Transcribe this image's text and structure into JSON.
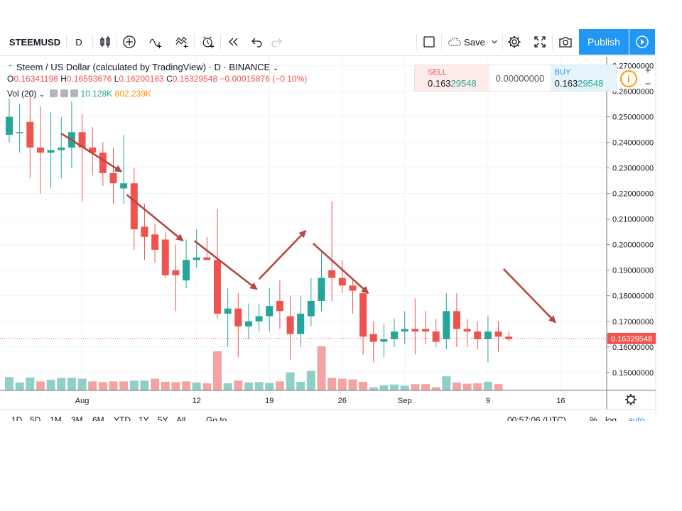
{
  "toolbar": {
    "symbol": "STEEMUSD",
    "interval": "D",
    "icons": [
      "candles-icon",
      "plus-circle-icon",
      "indicator-icon",
      "templates-icon",
      "alert-icon",
      "replay-icon",
      "undo-icon",
      "redo-icon",
      "layout-square-icon",
      "cloud-icon",
      "settings-gear-icon",
      "fullscreen-icon",
      "camera-icon",
      "play-icon"
    ],
    "save_label": "Save",
    "publish_label": "Publish"
  },
  "legend": {
    "title": "Steem / US Dollar (calculated by TradingView) · D · BINANCE",
    "ohlc": {
      "open_label": "O",
      "open": "0.16341198",
      "high_label": "H",
      "high": "0.16593676",
      "low_label": "L",
      "low": "0.16200183",
      "close_label": "C",
      "close": "0.16329548",
      "change": "−0.00015876 (−0.10%)"
    },
    "volume": {
      "label": "Vol (20)",
      "value": "10.128K",
      "ma": "802.239K"
    }
  },
  "trade_panel": {
    "sell_label": "SELL",
    "sell_price_a": "0.163",
    "sell_price_b": "29548",
    "quantity": "0.00000000",
    "buy_label": "BUY",
    "buy_price_a": "0.163",
    "buy_price_b": "29548",
    "info": "i",
    "plus": "+",
    "minus": "−"
  },
  "bottom_bar": {
    "ranges": [
      "1D",
      "5D",
      "1M",
      "3M",
      "6M",
      "YTD",
      "1Y",
      "5Y",
      "All"
    ],
    "goto": "Go to...",
    "time": "00:57:06 (UTC)",
    "percent": "%",
    "log": "log",
    "auto": "auto"
  },
  "colors": {
    "up": "#26a69a",
    "down": "#ef5350",
    "vol_up": "#8fd0c6",
    "vol_down": "#f4a3a3",
    "arrow": "#b4473f",
    "accent": "#2196f3"
  },
  "chart_data": {
    "type": "candlestick",
    "y_ticks": [
      "0.27000000",
      "0.26000000",
      "0.25000000",
      "0.24000000",
      "0.23000000",
      "0.22000000",
      "0.21000000",
      "0.20000000",
      "0.19000000",
      "0.18000000",
      "0.17000000",
      "0.16000000",
      "0.15000000"
    ],
    "y_tick_values": [
      0.27,
      0.26,
      0.25,
      0.24,
      0.23,
      0.22,
      0.21,
      0.2,
      0.19,
      0.18,
      0.17,
      0.16,
      0.15
    ],
    "ylim": [
      0.143,
      0.2735
    ],
    "last_price": 0.16329548,
    "last_price_label": "0.16329548",
    "x_tick_labels": [
      "Aug",
      "12",
      "19",
      "26",
      "Sep",
      "9",
      "16"
    ],
    "x_tick_index": [
      7,
      18,
      25,
      32,
      38,
      46,
      53
    ],
    "candles": [
      {
        "o": 0.243,
        "h": 0.257,
        "l": 0.24,
        "c": 0.25
      },
      {
        "o": 0.244,
        "h": 0.255,
        "l": 0.236,
        "c": 0.244
      },
      {
        "o": 0.248,
        "h": 0.259,
        "l": 0.226,
        "c": 0.238
      },
      {
        "o": 0.238,
        "h": 0.254,
        "l": 0.22,
        "c": 0.236
      },
      {
        "o": 0.236,
        "h": 0.252,
        "l": 0.222,
        "c": 0.237
      },
      {
        "o": 0.237,
        "h": 0.25,
        "l": 0.226,
        "c": 0.238
      },
      {
        "o": 0.238,
        "h": 0.256,
        "l": 0.23,
        "c": 0.244
      },
      {
        "o": 0.244,
        "h": 0.251,
        "l": 0.217,
        "c": 0.238
      },
      {
        "o": 0.238,
        "h": 0.246,
        "l": 0.227,
        "c": 0.236
      },
      {
        "o": 0.236,
        "h": 0.24,
        "l": 0.223,
        "c": 0.228
      },
      {
        "o": 0.228,
        "h": 0.238,
        "l": 0.216,
        "c": 0.224
      },
      {
        "o": 0.222,
        "h": 0.243,
        "l": 0.216,
        "c": 0.224
      },
      {
        "o": 0.224,
        "h": 0.23,
        "l": 0.198,
        "c": 0.206
      },
      {
        "o": 0.207,
        "h": 0.216,
        "l": 0.194,
        "c": 0.203
      },
      {
        "o": 0.204,
        "h": 0.208,
        "l": 0.193,
        "c": 0.198
      },
      {
        "o": 0.202,
        "h": 0.205,
        "l": 0.187,
        "c": 0.188
      },
      {
        "o": 0.19,
        "h": 0.2,
        "l": 0.174,
        "c": 0.188
      },
      {
        "o": 0.186,
        "h": 0.202,
        "l": 0.183,
        "c": 0.194
      },
      {
        "o": 0.194,
        "h": 0.206,
        "l": 0.191,
        "c": 0.195
      },
      {
        "o": 0.195,
        "h": 0.203,
        "l": 0.194,
        "c": 0.194
      },
      {
        "o": 0.194,
        "h": 0.214,
        "l": 0.171,
        "c": 0.173
      },
      {
        "o": 0.173,
        "h": 0.183,
        "l": 0.16,
        "c": 0.175
      },
      {
        "o": 0.175,
        "h": 0.181,
        "l": 0.156,
        "c": 0.168
      },
      {
        "o": 0.168,
        "h": 0.177,
        "l": 0.163,
        "c": 0.17
      },
      {
        "o": 0.17,
        "h": 0.177,
        "l": 0.166,
        "c": 0.172
      },
      {
        "o": 0.172,
        "h": 0.183,
        "l": 0.166,
        "c": 0.176
      },
      {
        "o": 0.178,
        "h": 0.186,
        "l": 0.167,
        "c": 0.174
      },
      {
        "o": 0.172,
        "h": 0.18,
        "l": 0.155,
        "c": 0.165
      },
      {
        "o": 0.165,
        "h": 0.18,
        "l": 0.16,
        "c": 0.173
      },
      {
        "o": 0.172,
        "h": 0.187,
        "l": 0.168,
        "c": 0.178
      },
      {
        "o": 0.178,
        "h": 0.197,
        "l": 0.174,
        "c": 0.187
      },
      {
        "o": 0.19,
        "h": 0.217,
        "l": 0.178,
        "c": 0.187
      },
      {
        "o": 0.187,
        "h": 0.194,
        "l": 0.181,
        "c": 0.184
      },
      {
        "o": 0.184,
        "h": 0.186,
        "l": 0.173,
        "c": 0.182
      },
      {
        "o": 0.181,
        "h": 0.182,
        "l": 0.157,
        "c": 0.164
      },
      {
        "o": 0.165,
        "h": 0.17,
        "l": 0.154,
        "c": 0.162
      },
      {
        "o": 0.162,
        "h": 0.169,
        "l": 0.156,
        "c": 0.163
      },
      {
        "o": 0.163,
        "h": 0.171,
        "l": 0.16,
        "c": 0.166
      },
      {
        "o": 0.166,
        "h": 0.174,
        "l": 0.161,
        "c": 0.167
      },
      {
        "o": 0.167,
        "h": 0.179,
        "l": 0.157,
        "c": 0.166
      },
      {
        "o": 0.167,
        "h": 0.174,
        "l": 0.161,
        "c": 0.166
      },
      {
        "o": 0.166,
        "h": 0.171,
        "l": 0.16,
        "c": 0.162
      },
      {
        "o": 0.163,
        "h": 0.181,
        "l": 0.159,
        "c": 0.174
      },
      {
        "o": 0.174,
        "h": 0.181,
        "l": 0.16,
        "c": 0.167
      },
      {
        "o": 0.167,
        "h": 0.171,
        "l": 0.16,
        "c": 0.166
      },
      {
        "o": 0.166,
        "h": 0.17,
        "l": 0.159,
        "c": 0.163
      },
      {
        "o": 0.163,
        "h": 0.172,
        "l": 0.154,
        "c": 0.166
      },
      {
        "o": 0.166,
        "h": 0.17,
        "l": 0.158,
        "c": 0.164
      },
      {
        "o": 0.164,
        "h": 0.166,
        "l": 0.162,
        "c": 0.163
      }
    ],
    "volume_max": 100,
    "volume": [
      {
        "v": 34,
        "up": true
      },
      {
        "v": 20,
        "up": true
      },
      {
        "v": 33,
        "up": true
      },
      {
        "v": 23,
        "up": false
      },
      {
        "v": 27,
        "up": true
      },
      {
        "v": 32,
        "up": true
      },
      {
        "v": 32,
        "up": true
      },
      {
        "v": 30,
        "up": true
      },
      {
        "v": 23,
        "up": false
      },
      {
        "v": 21,
        "up": false
      },
      {
        "v": 23,
        "up": false
      },
      {
        "v": 23,
        "up": false
      },
      {
        "v": 25,
        "up": true
      },
      {
        "v": 25,
        "up": true
      },
      {
        "v": 30,
        "up": false
      },
      {
        "v": 22,
        "up": false
      },
      {
        "v": 21,
        "up": false
      },
      {
        "v": 23,
        "up": false
      },
      {
        "v": 20,
        "up": true
      },
      {
        "v": 18,
        "up": false
      },
      {
        "v": 100,
        "up": false
      },
      {
        "v": 18,
        "up": true
      },
      {
        "v": 25,
        "up": false
      },
      {
        "v": 20,
        "up": true
      },
      {
        "v": 21,
        "up": true
      },
      {
        "v": 19,
        "up": true
      },
      {
        "v": 23,
        "up": false
      },
      {
        "v": 46,
        "up": true
      },
      {
        "v": 22,
        "up": true
      },
      {
        "v": 50,
        "up": true
      },
      {
        "v": 113,
        "up": false
      },
      {
        "v": 32,
        "up": false
      },
      {
        "v": 30,
        "up": false
      },
      {
        "v": 28,
        "up": false
      },
      {
        "v": 22,
        "up": false
      },
      {
        "v": 8,
        "up": true
      },
      {
        "v": 13,
        "up": true
      },
      {
        "v": 15,
        "up": true
      },
      {
        "v": 12,
        "up": true
      },
      {
        "v": 16,
        "up": false
      },
      {
        "v": 16,
        "up": false
      },
      {
        "v": 8,
        "up": false
      },
      {
        "v": 36,
        "up": true
      },
      {
        "v": 20,
        "up": false
      },
      {
        "v": 17,
        "up": false
      },
      {
        "v": 18,
        "up": false
      },
      {
        "v": 22,
        "up": true
      },
      {
        "v": 16,
        "up": false
      },
      {
        "v": 0,
        "up": false
      }
    ],
    "trend_arrows": [
      {
        "from": [
          5,
          0.2435
        ],
        "to": [
          10.8,
          0.2285
        ]
      },
      {
        "from": [
          11.3,
          0.2195
        ],
        "to": [
          16.7,
          0.2015
        ]
      },
      {
        "from": [
          17.8,
          0.2015
        ],
        "to": [
          23.8,
          0.1825
        ]
      },
      {
        "from": [
          24,
          0.1865
        ],
        "to": [
          28.5,
          0.2055
        ]
      },
      {
        "from": [
          29.2,
          0.2005
        ],
        "to": [
          34.5,
          0.181
        ]
      },
      {
        "from": [
          47.5,
          0.1905
        ],
        "to": [
          52.5,
          0.1695
        ]
      }
    ]
  }
}
